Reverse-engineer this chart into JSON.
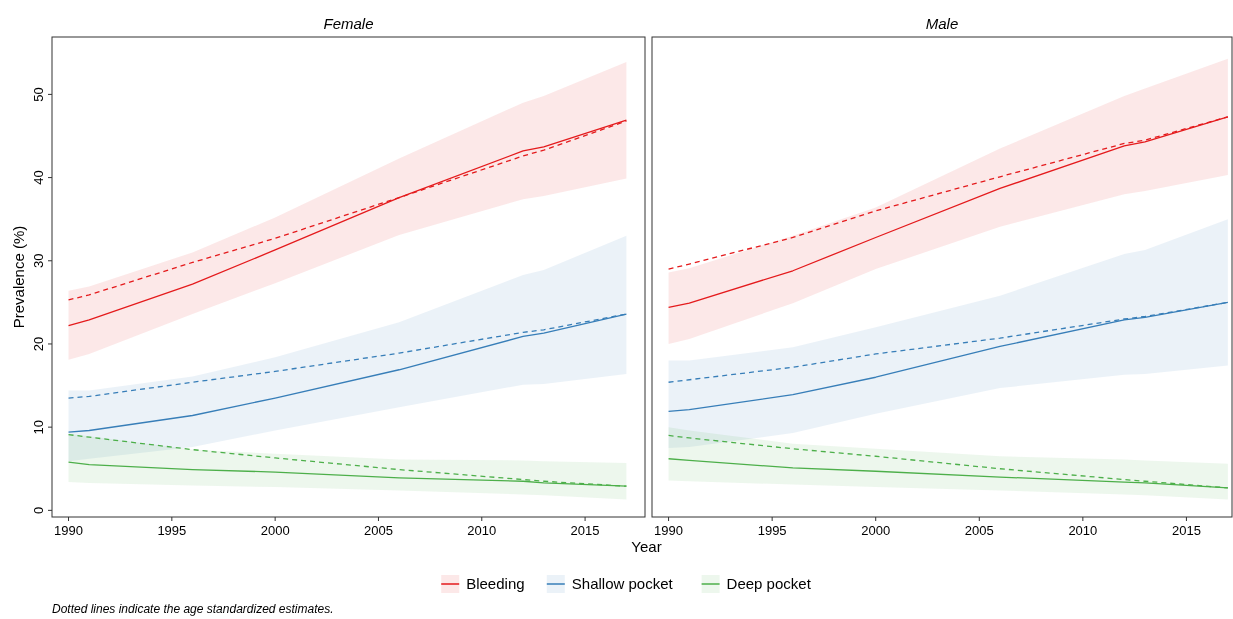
{
  "chart_data": [
    {
      "type": "line",
      "title": "Female",
      "xlabel": "Year",
      "ylabel": "Prevalence (%)",
      "x": [
        1990,
        1991,
        1996,
        2000,
        2006,
        2012,
        2013,
        2017
      ],
      "xlim": [
        1989.2,
        2017.9
      ],
      "xticks": [
        1990,
        1995,
        2000,
        2005,
        2010,
        2015
      ],
      "ylim": [
        -0.8,
        56.9
      ],
      "yticks": [
        0,
        10,
        20,
        30,
        40,
        50
      ],
      "grid": false,
      "legend": "bottom",
      "annotations": [
        "Dotted lines indicate the age standardized estimates."
      ],
      "series": [
        {
          "name": "Bleeding",
          "color": "#e41a1c",
          "values": [
            22.2,
            22.9,
            27.2,
            31.3,
            37.6,
            43.2,
            43.7,
            46.9
          ],
          "lower": [
            18.1,
            18.8,
            23.6,
            27.3,
            33.1,
            37.4,
            37.8,
            39.9
          ],
          "upper": [
            26.4,
            26.9,
            31.0,
            35.2,
            42.3,
            49.0,
            49.8,
            53.9
          ]
        },
        {
          "name": "Shallow pocket",
          "color": "#377eb8",
          "values": [
            9.4,
            9.6,
            11.4,
            13.5,
            16.9,
            20.9,
            21.3,
            23.6
          ],
          "lower": [
            5.9,
            6.2,
            7.6,
            9.6,
            12.4,
            15.1,
            15.2,
            16.4
          ],
          "upper": [
            14.4,
            14.4,
            16.1,
            18.4,
            22.6,
            28.3,
            28.9,
            33.0
          ]
        },
        {
          "name": "Deep pocket",
          "color": "#4daf4a",
          "values": [
            5.8,
            5.5,
            4.9,
            4.6,
            3.9,
            3.5,
            3.3,
            2.9
          ],
          "lower": [
            3.4,
            3.3,
            3.0,
            2.8,
            2.4,
            1.9,
            1.8,
            1.3
          ],
          "upper": [
            9.2,
            8.9,
            7.3,
            6.8,
            6.1,
            6.0,
            5.9,
            5.7
          ]
        },
        {
          "color": "#e41a1c",
          "line_style": "dashed",
          "values": [
            25.3,
            25.9,
            29.8,
            32.7,
            37.6,
            42.6,
            43.3,
            46.8
          ]
        },
        {
          "color": "#377eb8",
          "line_style": "dashed",
          "values": [
            13.5,
            13.7,
            15.4,
            16.7,
            18.9,
            21.4,
            21.7,
            23.6
          ]
        },
        {
          "color": "#4daf4a",
          "line_style": "dashed",
          "values": [
            9.1,
            8.8,
            7.3,
            6.3,
            4.9,
            3.7,
            3.5,
            2.9
          ]
        }
      ]
    },
    {
      "type": "line",
      "title": "Male",
      "x": [
        1990,
        1991,
        1996,
        2000,
        2006,
        2012,
        2013,
        2017
      ],
      "xlim": [
        1989.2,
        2017.2
      ],
      "xticks": [
        1990,
        1995,
        2000,
        2005,
        2010,
        2015
      ],
      "ylim": [
        -0.8,
        56.9
      ],
      "yticks": [
        0,
        10,
        20,
        30,
        40,
        50
      ],
      "grid": false,
      "tick_labels": "x",
      "series": [
        {
          "color": "#e41a1c",
          "values": [
            24.4,
            24.9,
            28.8,
            32.8,
            38.7,
            43.8,
            44.3,
            47.3
          ],
          "lower": [
            20.0,
            20.6,
            24.9,
            29.0,
            34.1,
            38.0,
            38.4,
            40.3
          ],
          "upper": [
            28.6,
            29.1,
            33.0,
            36.4,
            43.5,
            49.8,
            50.7,
            54.3
          ]
        },
        {
          "color": "#377eb8",
          "values": [
            11.9,
            12.1,
            13.9,
            16.0,
            19.7,
            22.9,
            23.2,
            25.0
          ],
          "lower": [
            7.5,
            7.6,
            9.3,
            11.6,
            14.7,
            16.3,
            16.4,
            17.4
          ],
          "upper": [
            18.0,
            18.0,
            19.6,
            22.0,
            25.8,
            30.8,
            31.3,
            35.0
          ]
        },
        {
          "color": "#4daf4a",
          "values": [
            6.2,
            6.0,
            5.1,
            4.7,
            4.0,
            3.4,
            3.3,
            2.7
          ],
          "lower": [
            3.6,
            3.5,
            3.1,
            2.8,
            2.4,
            1.9,
            1.8,
            1.3
          ],
          "upper": [
            10.0,
            9.6,
            8.0,
            7.4,
            6.5,
            6.1,
            6.0,
            5.6
          ]
        },
        {
          "color": "#e41a1c",
          "line_style": "dashed",
          "values": [
            29.0,
            29.6,
            32.8,
            36.0,
            40.1,
            44.1,
            44.5,
            47.3
          ]
        },
        {
          "color": "#377eb8",
          "line_style": "dashed",
          "values": [
            15.4,
            15.7,
            17.2,
            18.8,
            20.7,
            23.0,
            23.3,
            25.0
          ]
        },
        {
          "color": "#4daf4a",
          "line_style": "dashed",
          "values": [
            9.0,
            8.7,
            7.4,
            6.5,
            5.0,
            3.7,
            3.5,
            2.7
          ]
        }
      ]
    }
  ]
}
